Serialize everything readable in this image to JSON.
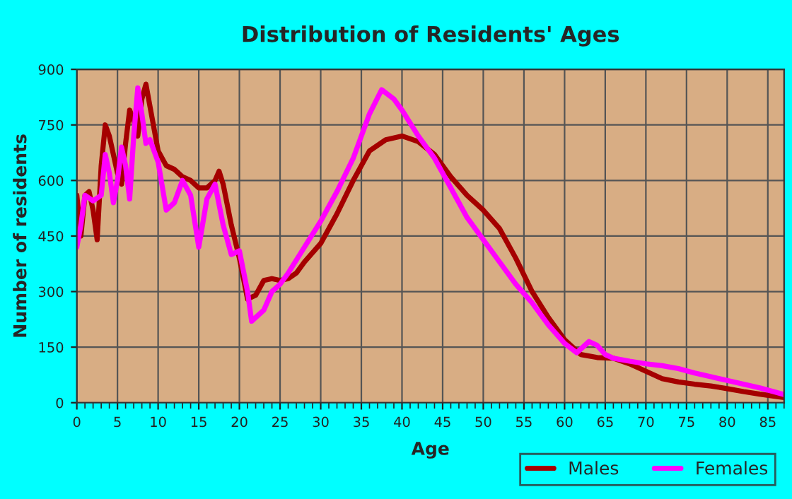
{
  "chart_data": {
    "type": "line",
    "title": "Distribution of Residents' Ages",
    "xlabel": "Age",
    "ylabel": "Number of residents",
    "xlim": [
      0,
      87
    ],
    "xticks": [
      0,
      5,
      10,
      15,
      20,
      25,
      30,
      35,
      40,
      45,
      50,
      55,
      60,
      65,
      70,
      75,
      80,
      85
    ],
    "ylim": [
      0,
      900
    ],
    "yticks": [
      0,
      150,
      300,
      450,
      600,
      750,
      900
    ],
    "grid": true,
    "legend": "bottom",
    "marker": "none",
    "line_style": "solid",
    "series": [
      {
        "name": "Males",
        "color": "#a50000",
        "x": [
          0,
          0.5,
          1,
          1.5,
          2,
          2.5,
          3,
          3.5,
          4,
          5,
          5.5,
          6,
          6.5,
          7,
          7.5,
          8,
          8.5,
          9,
          10,
          11,
          12,
          13,
          14,
          15,
          16,
          17,
          17.5,
          18,
          19,
          20,
          21,
          22,
          23,
          24,
          25,
          26,
          27,
          28,
          30,
          32,
          34,
          36,
          38,
          40,
          42,
          44,
          46,
          48,
          50,
          52,
          54,
          56,
          58,
          60,
          62,
          64,
          66,
          68,
          70,
          72,
          74,
          76,
          78,
          80,
          82,
          84,
          86,
          87
        ],
        "values": [
          560,
          450,
          560,
          570,
          520,
          440,
          640,
          750,
          720,
          620,
          590,
          700,
          790,
          760,
          720,
          820,
          860,
          800,
          680,
          640,
          630,
          610,
          600,
          580,
          580,
          600,
          625,
          590,
          480,
          390,
          280,
          290,
          330,
          335,
          330,
          335,
          350,
          380,
          430,
          510,
          600,
          680,
          710,
          720,
          705,
          670,
          610,
          560,
          520,
          470,
          390,
          300,
          230,
          170,
          130,
          122,
          120,
          105,
          85,
          65,
          56,
          50,
          45,
          38,
          30,
          23,
          17,
          14
        ]
      },
      {
        "name": "Females",
        "color": "#ff00ff",
        "x": [
          0,
          0.5,
          1,
          2,
          3,
          3.5,
          4,
          4.5,
          5,
          5.5,
          6,
          6.5,
          7,
          7.5,
          8,
          8.5,
          9,
          10,
          11,
          12,
          13,
          14,
          15,
          16,
          17,
          18,
          19,
          20,
          21,
          21.5,
          23,
          24,
          25,
          26,
          28,
          30,
          32,
          34,
          36,
          37.5,
          39,
          40,
          42,
          44,
          46,
          48,
          50,
          52,
          54,
          56,
          58,
          60,
          61.5,
          63,
          64,
          65,
          66,
          68,
          70,
          72,
          74,
          76,
          78,
          80,
          82,
          84,
          86,
          87
        ],
        "values": [
          420,
          480,
          560,
          545,
          560,
          670,
          620,
          540,
          600,
          690,
          640,
          550,
          720,
          850,
          780,
          700,
          710,
          650,
          520,
          540,
          600,
          560,
          420,
          550,
          590,
          480,
          400,
          410,
          300,
          220,
          250,
          300,
          320,
          350,
          420,
          490,
          570,
          660,
          780,
          845,
          820,
          790,
          720,
          660,
          580,
          500,
          440,
          380,
          320,
          270,
          210,
          160,
          135,
          165,
          155,
          130,
          120,
          112,
          105,
          100,
          92,
          80,
          70,
          60,
          50,
          40,
          28,
          22
        ]
      }
    ]
  }
}
